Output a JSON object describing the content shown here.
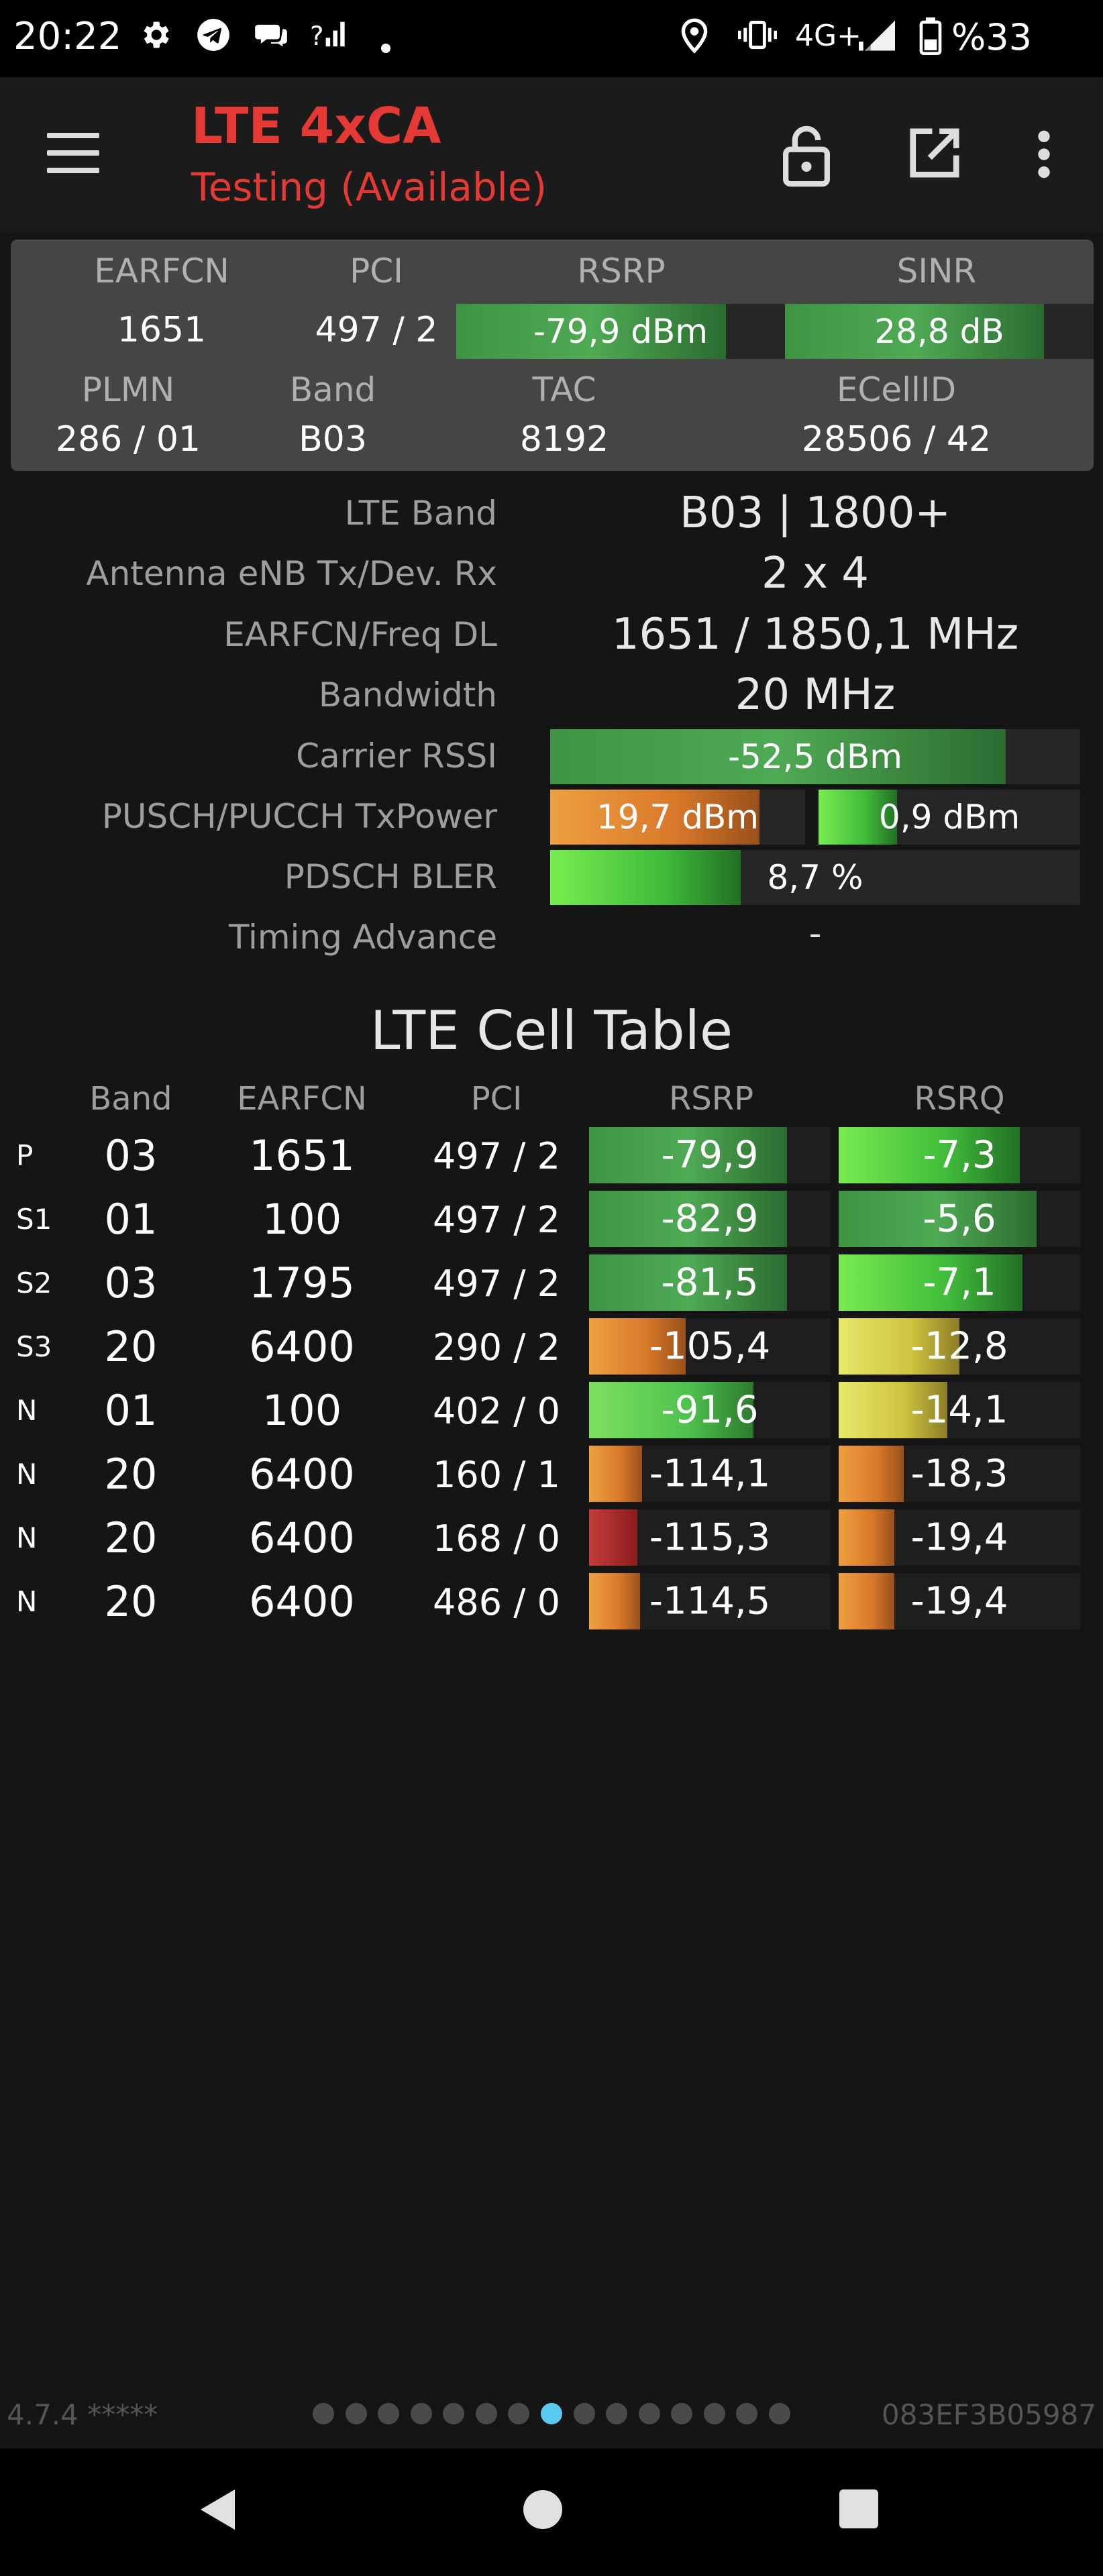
{
  "status_bar": {
    "time": "20:22",
    "icons": [
      "gear-icon",
      "telegram-icon",
      "chat-icon",
      "signal-question-icon",
      "dot-icon"
    ],
    "right_icons": [
      "location-icon",
      "vibrate-icon",
      "signal-icon"
    ],
    "network": "4G+",
    "battery": "%33"
  },
  "toolbar": {
    "title": "LTE 4xCA",
    "subtitle": "Testing (Available)",
    "actions": [
      "lock-open-icon",
      "open-external-icon",
      "more-vert-icon"
    ]
  },
  "summary": {
    "earfcn_label": "EARFCN",
    "earfcn": "1651",
    "pci_label": "PCI",
    "pci": "497 / 2",
    "rsrp_label": "RSRP",
    "rsrp": "-79,9 dBm",
    "rsrp_level": 0.82,
    "sinr_label": "SINR",
    "sinr": "28,8 dB",
    "sinr_level": 0.84,
    "plmn_label": "PLMN",
    "plmn": "286 / 01",
    "band_label": "Band",
    "band": "B03",
    "tac_label": "TAC",
    "tac": "8192",
    "ecellid_label": "ECellID",
    "ecellid": "28506 / 42"
  },
  "info": {
    "lte_band_label": "LTE Band",
    "lte_band": "B03 | 1800+",
    "antenna_label": "Antenna eNB Tx/Dev. Rx",
    "antenna": "2 x 4",
    "earfcn_freq_label": "EARFCN/Freq DL",
    "earfcn_freq": "1651 / 1850,1 MHz",
    "bandwidth_label": "Bandwidth",
    "bandwidth": "20 MHz",
    "rssi_label": "Carrier RSSI",
    "rssi": "-52,5 dBm",
    "rssi_level": 0.86,
    "txpower_label": "PUSCH/PUCCH TxPower",
    "pusch": "19,7 dBm",
    "pusch_level": 0.82,
    "pucch": "0,9 dBm",
    "pucch_level": 0.3,
    "bler_label": "PDSCH BLER",
    "bler": "8,7 %",
    "bler_level": 0.36,
    "ta_label": "Timing Advance",
    "ta": "-"
  },
  "cell_table": {
    "title": "LTE Cell Table",
    "headers": [
      "Band",
      "EARFCN",
      "PCI",
      "RSRP",
      "RSRQ"
    ],
    "rows": [
      {
        "type": "P",
        "band": "03",
        "earfcn": "1651",
        "pci": "497 / 2",
        "rsrp": "-79,9",
        "rsrp_level": 0.82,
        "rsrp_color": "green",
        "rsrq": "-7,3",
        "rsrq_level": 0.75,
        "rsrq_color": "bright"
      },
      {
        "type": "S1",
        "band": "01",
        "earfcn": "100",
        "pci": "497 / 2",
        "rsrp": "-82,9",
        "rsrp_level": 0.82,
        "rsrp_color": "green",
        "rsrq": "-5,6",
        "rsrq_level": 0.82,
        "rsrq_color": "green"
      },
      {
        "type": "S2",
        "band": "03",
        "earfcn": "1795",
        "pci": "497 / 2",
        "rsrp": "-81,5",
        "rsrp_level": 0.82,
        "rsrp_color": "green",
        "rsrq": "-7,1",
        "rsrq_level": 0.76,
        "rsrq_color": "bright"
      },
      {
        "type": "S3",
        "band": "20",
        "earfcn": "6400",
        "pci": "290 / 2",
        "rsrp": "-105,4",
        "rsrp_level": 0.4,
        "rsrp_color": "orange",
        "rsrq": "-12,8",
        "rsrq_level": 0.5,
        "rsrq_color": "yellow"
      },
      {
        "type": "N",
        "band": "01",
        "earfcn": "100",
        "pci": "402 / 0",
        "rsrp": "-91,6",
        "rsrp_level": 0.68,
        "rsrp_color": "lime",
        "rsrq": "-14,1",
        "rsrq_level": 0.45,
        "rsrq_color": "yellow"
      },
      {
        "type": "N",
        "band": "20",
        "earfcn": "6400",
        "pci": "160 / 1",
        "rsrp": "-114,1",
        "rsrp_level": 0.22,
        "rsrp_color": "orange",
        "rsrq": "-18,3",
        "rsrq_level": 0.27,
        "rsrq_color": "orange"
      },
      {
        "type": "N",
        "band": "20",
        "earfcn": "6400",
        "pci": "168 / 0",
        "rsrp": "-115,3",
        "rsrp_level": 0.2,
        "rsrp_color": "red",
        "rsrq": "-19,4",
        "rsrq_level": 0.23,
        "rsrq_color": "orange"
      },
      {
        "type": "N",
        "band": "20",
        "earfcn": "6400",
        "pci": "486 / 0",
        "rsrp": "-114,5",
        "rsrp_level": 0.21,
        "rsrp_color": "orange",
        "rsrq": "-19,4",
        "rsrq_level": 0.23,
        "rsrq_color": "orange"
      }
    ]
  },
  "footer": {
    "version": "4.7.4 *****",
    "device_id": "083EF3B05987",
    "page_count": 15,
    "active_page": 8
  },
  "nav": {
    "back": "back-triangle-icon",
    "home": "home-circle-icon",
    "recents": "recents-square-icon"
  }
}
